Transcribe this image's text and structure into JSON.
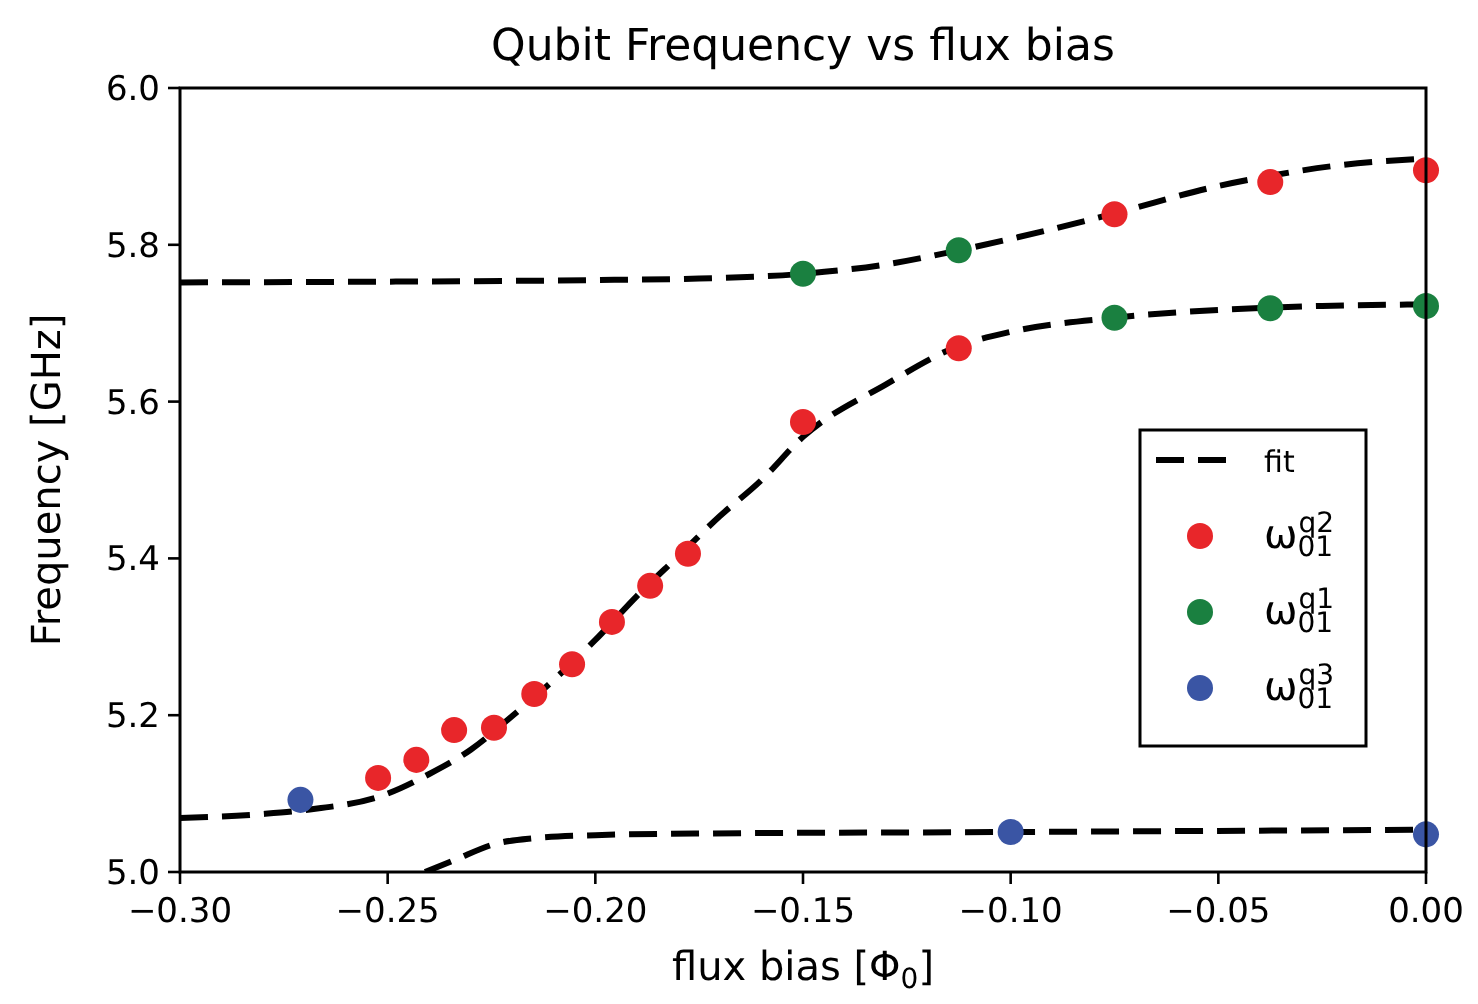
{
  "chart_data": {
    "type": "scatter",
    "title": "Qubit Frequency vs flux bias",
    "xlabel": "flux bias [Φ$_{0}$]",
    "ylabel": "Frequency [GHz]",
    "xlim": [
      -0.3,
      0
    ],
    "ylim": [
      5.0,
      6.0
    ],
    "xticks": [
      {
        "value": -0.3,
        "label": "−0.30"
      },
      {
        "value": -0.25,
        "label": "−0.25"
      },
      {
        "value": -0.2,
        "label": "−0.20"
      },
      {
        "value": -0.15,
        "label": "−0.15"
      },
      {
        "value": -0.1,
        "label": "−0.10"
      },
      {
        "value": -0.05,
        "label": "−0.05"
      },
      {
        "value": 0,
        "label": "0.00"
      }
    ],
    "yticks": [
      {
        "value": 5.0,
        "label": "5.0"
      },
      {
        "value": 5.2,
        "label": "5.2"
      },
      {
        "value": 5.4,
        "label": "5.4"
      },
      {
        "value": 5.6,
        "label": "5.6"
      },
      {
        "value": 5.8,
        "label": "5.8"
      },
      {
        "value": 6.0,
        "label": "6.0"
      }
    ],
    "grid": false,
    "legend": "right",
    "marker": "circle",
    "series": [
      {
        "type": "line",
        "name": "fit",
        "color": "#000000",
        "line_style": "dashed",
        "marker": "none",
        "x": [
          -0.3,
          -0.25,
          -0.2,
          -0.175,
          -0.15,
          -0.13,
          -0.1125,
          -0.09,
          -0.075,
          -0.05,
          -0.0375,
          -0.02,
          0
        ],
        "values": [
          5.752,
          5.753,
          5.755,
          5.757,
          5.763,
          5.775,
          5.793,
          5.82,
          5.84,
          5.875,
          5.888,
          5.902,
          5.91
        ]
      },
      {
        "type": "line",
        "color": "#000000",
        "line_style": "dashed",
        "marker": "none",
        "x": [
          -0.3,
          -0.28,
          -0.27,
          -0.25,
          -0.24,
          -0.23,
          -0.22,
          -0.21,
          -0.2,
          -0.19,
          -0.18,
          -0.17,
          -0.16,
          -0.15,
          -0.13,
          -0.1125,
          -0.1,
          -0.075,
          -0.05,
          -0.025,
          0
        ],
        "values": [
          5.069,
          5.074,
          5.079,
          5.1,
          5.125,
          5.156,
          5.199,
          5.245,
          5.296,
          5.352,
          5.403,
          5.454,
          5.5,
          5.555,
          5.622,
          5.671,
          5.689,
          5.707,
          5.717,
          5.722,
          5.724
        ]
      },
      {
        "type": "line",
        "color": "#000000",
        "line_style": "dashed",
        "marker": "none",
        "x": [
          -0.241,
          -0.234,
          -0.224,
          -0.215,
          -0.2,
          -0.176,
          -0.1,
          0
        ],
        "values": [
          5.0,
          5.015,
          5.036,
          5.043,
          5.047,
          5.049,
          5.051,
          5.054
        ]
      },
      {
        "name": "ω$_{01}$$^{q2}$",
        "color": "#e8262a",
        "x": [
          -0.2523,
          -0.2431,
          -0.234,
          -0.2244,
          -0.2147,
          -0.2056,
          -0.196,
          -0.1868,
          -0.1777,
          -0.15,
          -0.1125,
          -0.075,
          -0.0375,
          0
        ],
        "values": [
          5.12,
          5.143,
          5.181,
          5.184,
          5.227,
          5.265,
          5.319,
          5.365,
          5.406,
          5.574,
          5.668,
          5.839,
          5.88,
          5.895
        ]
      },
      {
        "name": "ω$_{01}$$^{q1}$",
        "color": "#1a8040",
        "x": [
          -0.15,
          -0.1125,
          -0.075,
          -0.0375,
          0
        ],
        "values": [
          5.763,
          5.793,
          5.707,
          5.719,
          5.722
        ]
      },
      {
        "name": "ω$_{01}$$^{q3}$",
        "color": "#3a55a4",
        "x": [
          -0.271,
          -0.1,
          0
        ],
        "values": [
          5.092,
          5.051,
          5.048
        ]
      }
    ]
  }
}
